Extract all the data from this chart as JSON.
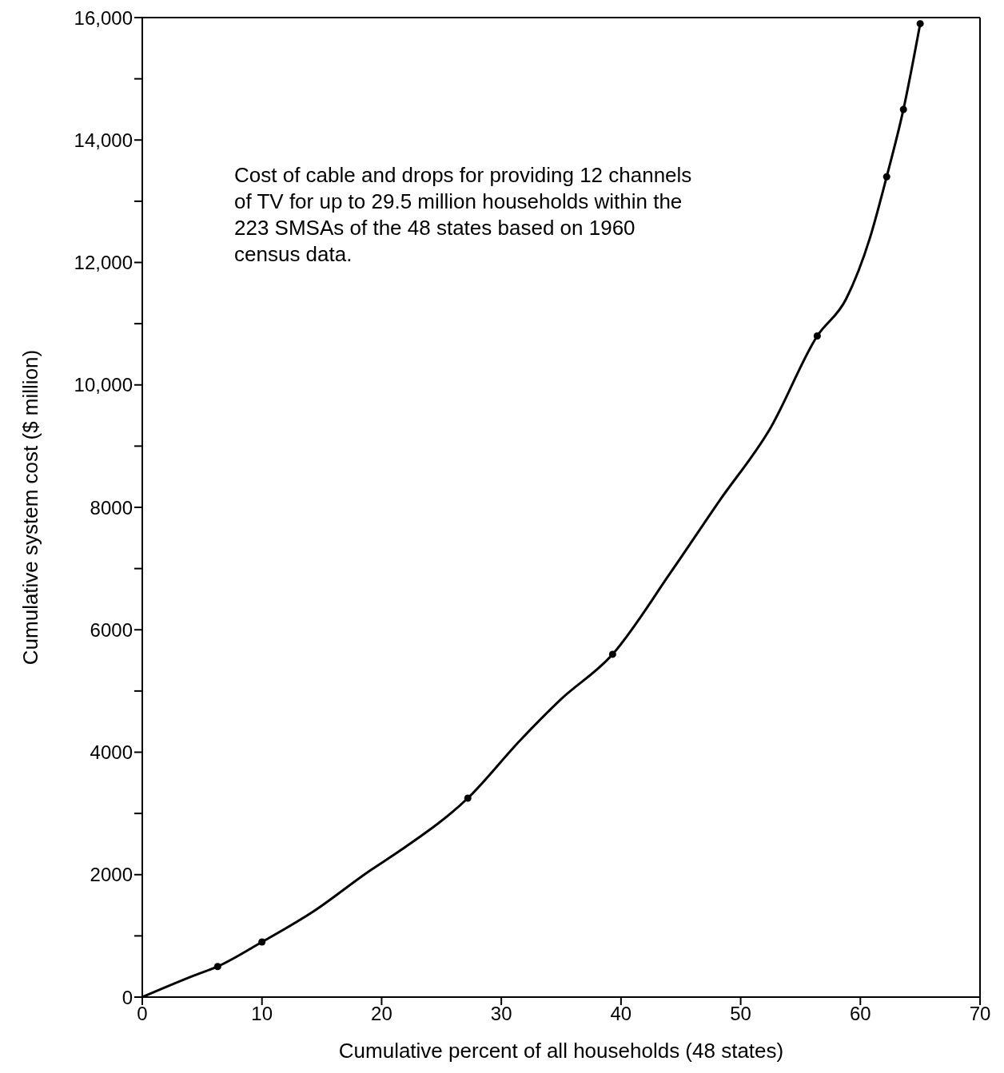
{
  "chart_data": {
    "type": "line",
    "xlabel": "Cumulative percent of all households (48 states)",
    "ylabel": "Cumulative system cost ($ million)",
    "annotations": [
      "Cost of cable and drops for providing 12 channels of TV for up to 29.5 million households within the 223 SMSAs of the 48 states based on 1960 census data."
    ],
    "xlim": [
      0,
      70
    ],
    "xticks": [
      0,
      10,
      20,
      30,
      40,
      50,
      60,
      70
    ],
    "ylim": [
      0,
      16000
    ],
    "yticks": [
      0,
      {
        "value": 1000,
        "label": null
      },
      2000,
      {
        "value": 3000,
        "label": null
      },
      4000,
      {
        "value": 5000,
        "label": null
      },
      6000,
      {
        "value": 7000,
        "label": null
      },
      8000,
      {
        "value": 9000,
        "label": null
      },
      {
        "value": 10000,
        "label": "10,000"
      },
      {
        "value": 11000,
        "label": null
      },
      {
        "value": 12000,
        "label": "12,000"
      },
      {
        "value": 13000,
        "label": null
      },
      {
        "value": 14000,
        "label": "14,000"
      },
      {
        "value": 15000,
        "label": null
      },
      {
        "value": 16000,
        "label": "16,000"
      }
    ],
    "grid": false,
    "series": [
      {
        "marker": "none",
        "line_style": "solid",
        "color": "#000000",
        "x": [
          0,
          4.3,
          6.3,
          10.0,
          14.3,
          18.9,
          21.6,
          27.2,
          31.6,
          34.9,
          39.3,
          44.2,
          48.2,
          52.5,
          56.4,
          58.8,
          60.8,
          62.2,
          63.6,
          65.0
        ],
        "values": [
          0,
          350,
          500,
          900,
          1400,
          2050,
          2400,
          3250,
          4200,
          4850,
          5600,
          6950,
          8100,
          9300,
          10800,
          11400,
          12400,
          13400,
          14500,
          15900
        ]
      },
      {
        "type": "scatter",
        "marker": "circle",
        "color": "#000000",
        "x": [
          6.3,
          10.0,
          27.2,
          39.3,
          56.4,
          62.2,
          63.6,
          65.0
        ],
        "values": [
          500,
          900,
          3250,
          5600,
          10800,
          13400,
          14500,
          15900
        ]
      }
    ]
  }
}
